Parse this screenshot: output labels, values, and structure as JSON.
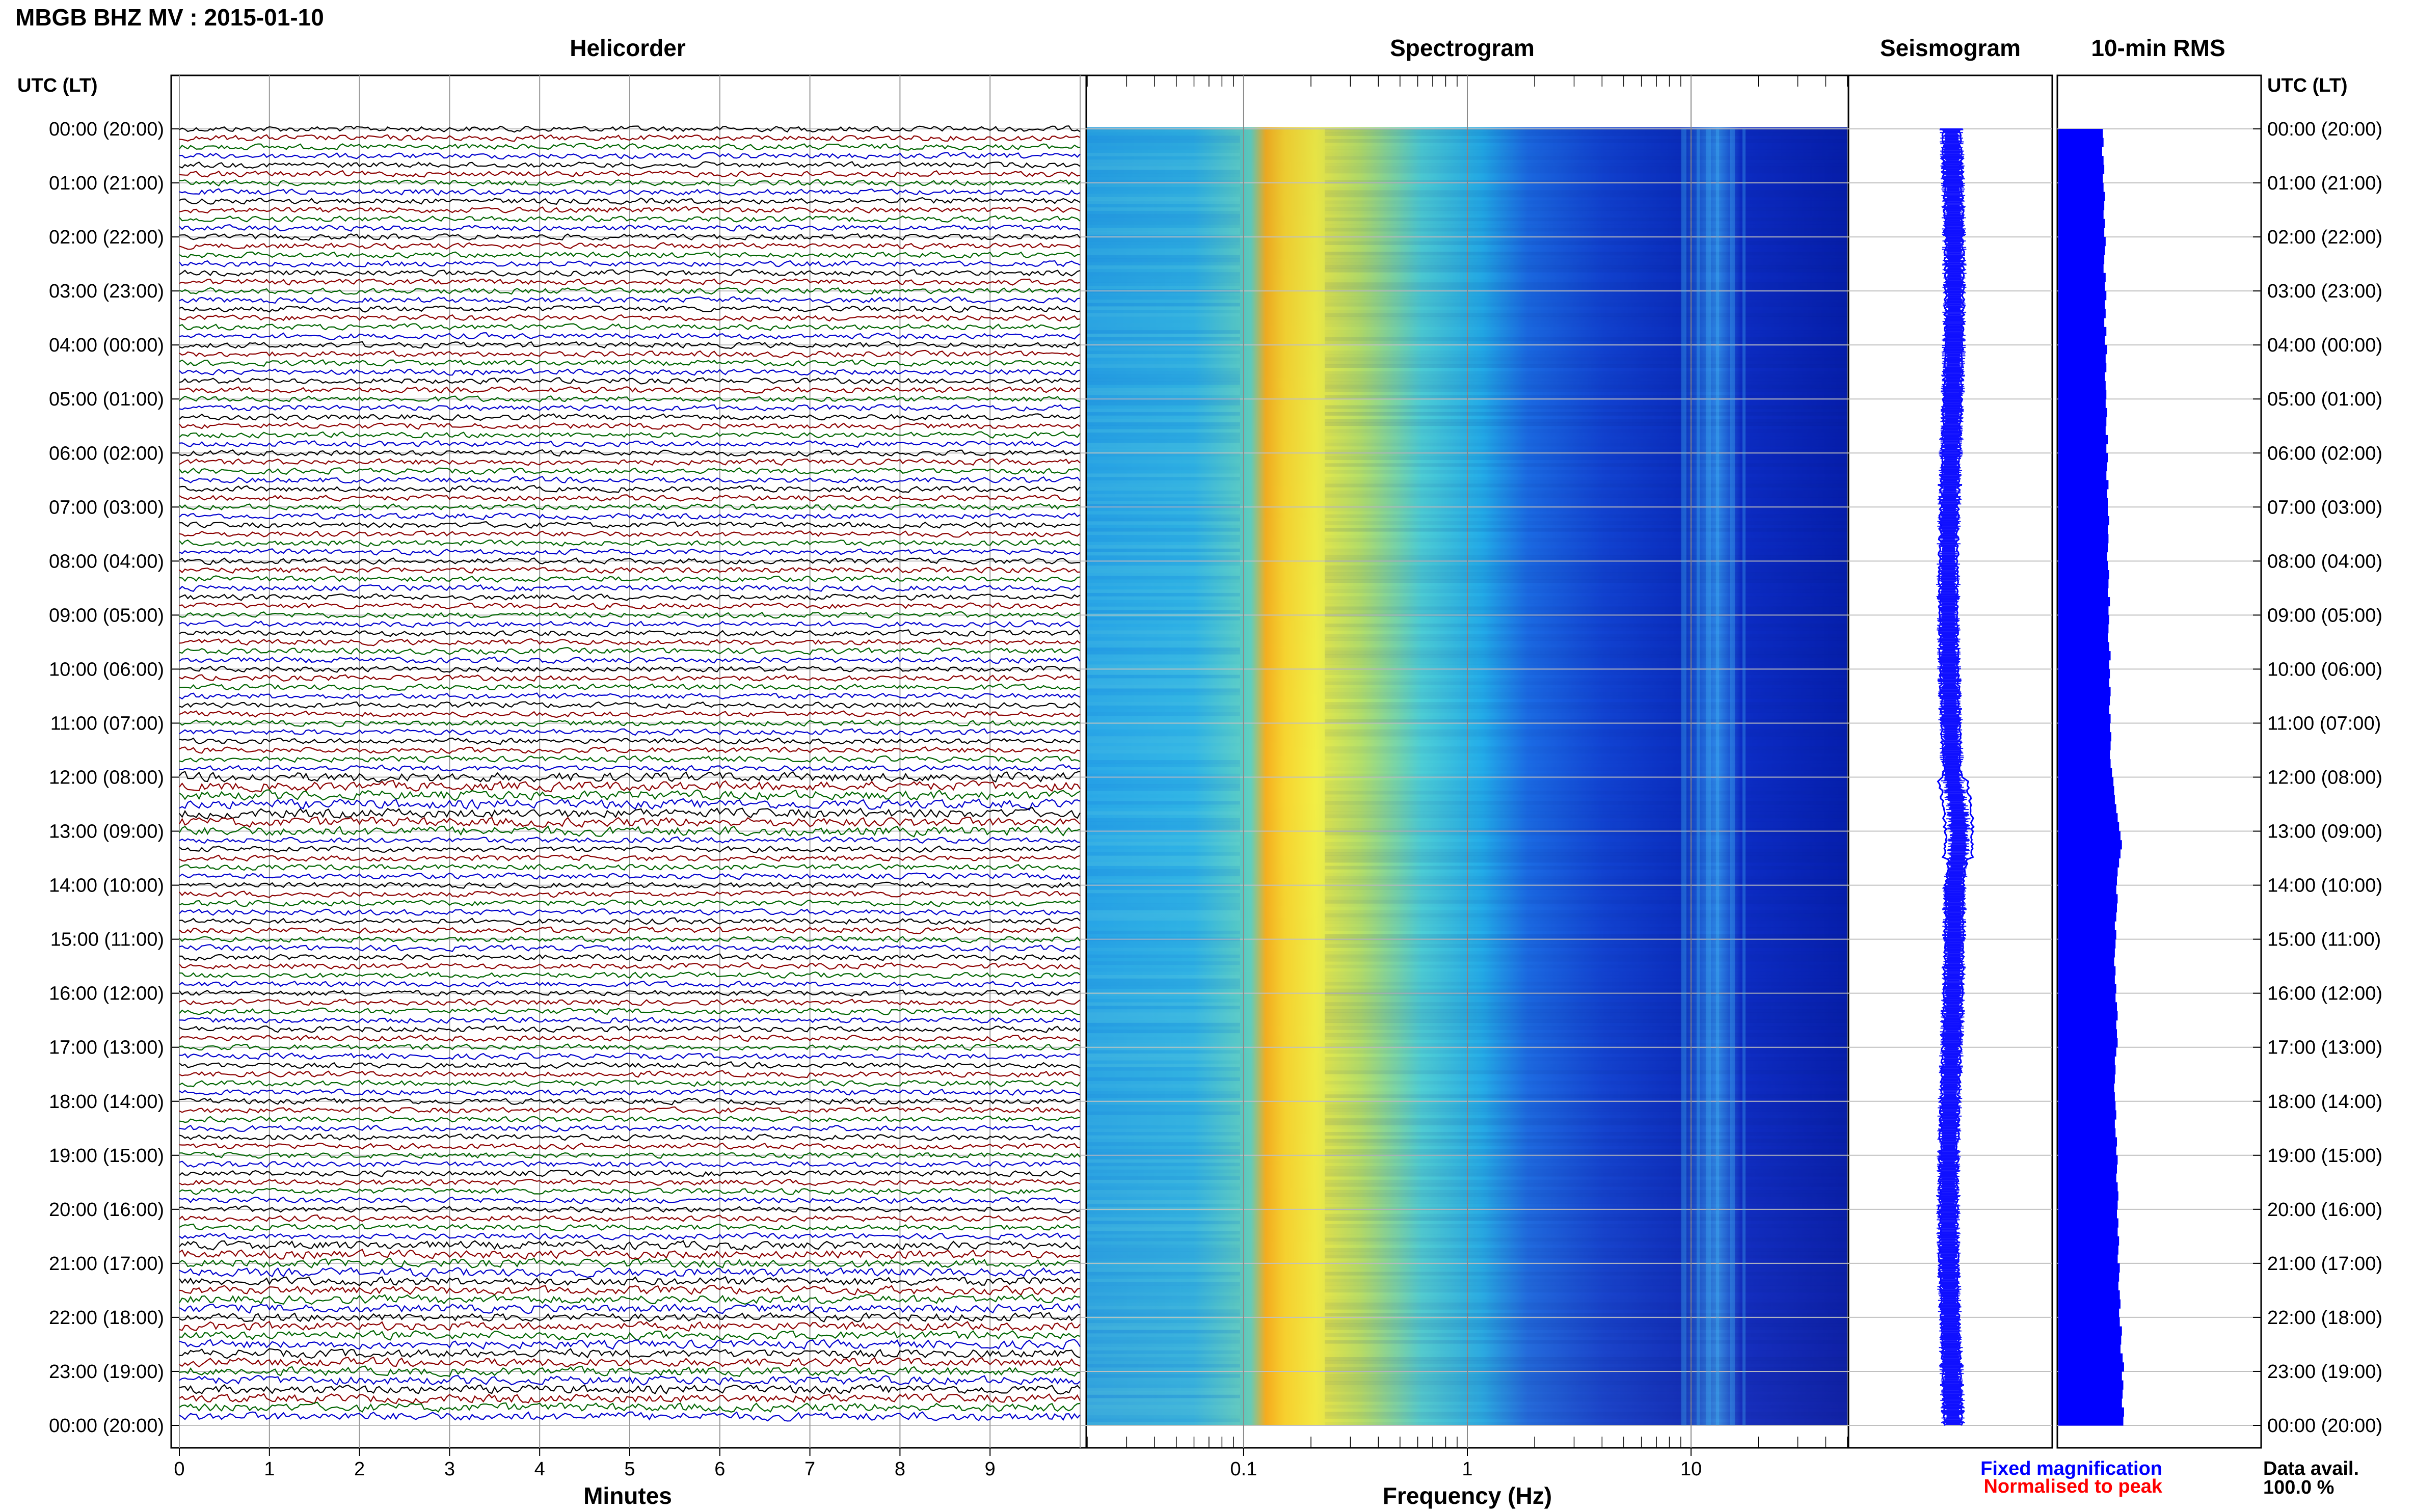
{
  "title": "MBGB BHZ MV : 2015-01-10",
  "panels": {
    "helicorder": "Helicorder",
    "spectrogram": "Spectrogram",
    "seismogram": "Seismogram",
    "rms": "10-min RMS"
  },
  "utc_label_left": "UTC (LT)",
  "utc_label_right": "UTC (LT)",
  "time_labels": [
    "00:00 (20:00)",
    "01:00 (21:00)",
    "02:00 (22:00)",
    "03:00 (23:00)",
    "04:00 (00:00)",
    "05:00 (01:00)",
    "06:00 (02:00)",
    "07:00 (03:00)",
    "08:00 (04:00)",
    "09:00 (05:00)",
    "10:00 (06:00)",
    "11:00 (07:00)",
    "12:00 (08:00)",
    "13:00 (09:00)",
    "14:00 (10:00)",
    "15:00 (11:00)",
    "16:00 (12:00)",
    "17:00 (13:00)",
    "18:00 (14:00)",
    "19:00 (15:00)",
    "20:00 (16:00)",
    "21:00 (17:00)",
    "22:00 (18:00)",
    "23:00 (19:00)",
    "00:00 (20:00)"
  ],
  "minutes_ticks": [
    "0",
    "1",
    "2",
    "3",
    "4",
    "5",
    "6",
    "7",
    "8",
    "9"
  ],
  "minutes_label": "Minutes",
  "freq_ticks": [
    "0.1",
    "1",
    "10"
  ],
  "freq_label": "Frequency (Hz)",
  "legend": {
    "fixed": "Fixed magnification",
    "normalised": "Normalised to peak",
    "fixed_color": "#0000ff",
    "normalised_color": "#ff0000"
  },
  "data_avail": {
    "label": "Data avail.",
    "value": "100.0 %"
  },
  "trace_colors": [
    "#000000",
    "#8b0000",
    "#006400",
    "#0000cd"
  ],
  "chart_data": {
    "type": "heatmap",
    "x_minutes_range": [
      0,
      10
    ],
    "freq_range_hz": [
      0.02,
      50
    ],
    "freq_scale": "log",
    "rms_10min": [
      0.63,
      0.64,
      0.62,
      0.64,
      0.65,
      0.63,
      0.64,
      0.66,
      0.65,
      0.64,
      0.66,
      0.65,
      0.67,
      0.66,
      0.65,
      0.64,
      0.67,
      0.66,
      0.68,
      0.66,
      0.67,
      0.65,
      0.68,
      0.66,
      0.69,
      0.67,
      0.68,
      0.66,
      0.67,
      0.68,
      0.67,
      0.69,
      0.68,
      0.67,
      0.7,
      0.68,
      0.7,
      0.69,
      0.68,
      0.71,
      0.69,
      0.7,
      0.7,
      0.72,
      0.7,
      0.71,
      0.7,
      0.69,
      0.7,
      0.72,
      0.71,
      0.7,
      0.73,
      0.71,
      0.72,
      0.71,
      0.7,
      0.72,
      0.74,
      0.72,
      0.73,
      0.72,
      0.74,
      0.73,
      0.72,
      0.74,
      0.73,
      0.75,
      0.74,
      0.73,
      0.74,
      0.76,
      0.78,
      0.79,
      0.8,
      0.82,
      0.84,
      0.86,
      0.88,
      0.9,
      0.88,
      0.86,
      0.84,
      0.83,
      0.82,
      0.84,
      0.83,
      0.82,
      0.8,
      0.82,
      0.81,
      0.8,
      0.79,
      0.81,
      0.8,
      0.82,
      0.81,
      0.83,
      0.84,
      0.82,
      0.83,
      0.84,
      0.82,
      0.8,
      0.81,
      0.8,
      0.79,
      0.8,
      0.81,
      0.82,
      0.8,
      0.81,
      0.83,
      0.82,
      0.84,
      0.83,
      0.82,
      0.84,
      0.85,
      0.84,
      0.83,
      0.85,
      0.84,
      0.86,
      0.85,
      0.84,
      0.87,
      0.86,
      0.85,
      0.87,
      0.88,
      0.86,
      0.87,
      0.9,
      0.89,
      0.88,
      0.91,
      0.93,
      0.9,
      0.92,
      0.91,
      0.9,
      0.93,
      0.92
    ]
  }
}
